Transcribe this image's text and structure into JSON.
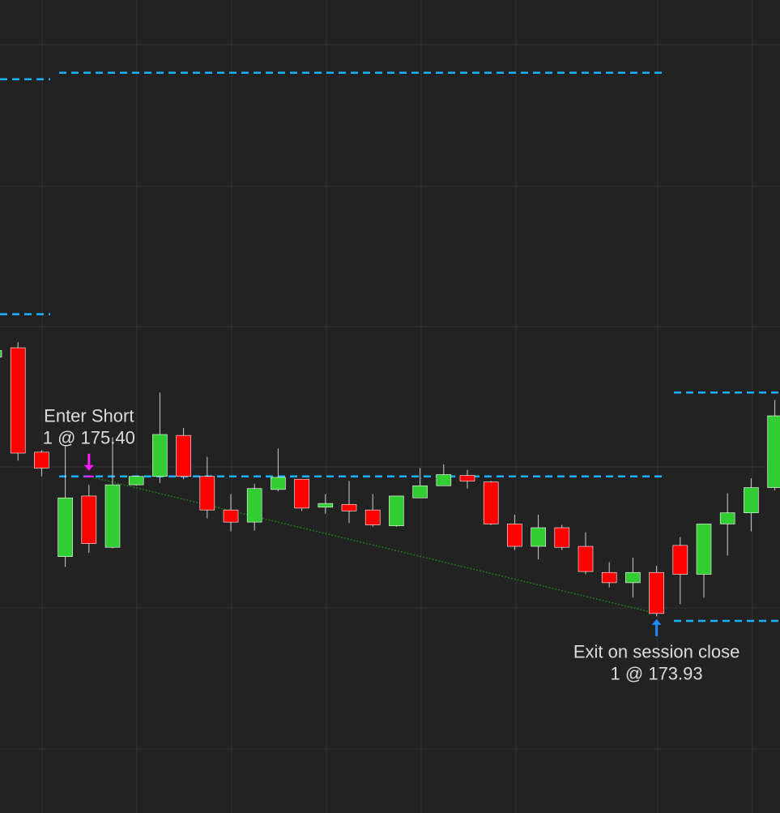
{
  "chart_data": {
    "type": "candlestick",
    "ylim": [
      171.79,
      180.51
    ],
    "up_color": "#32cd32",
    "down_color": "#ff0000",
    "level_color": "#1ab2ff",
    "trade_line_color": "#1f7a1f",
    "open": [
      176.68,
      176.78,
      175.66,
      174.54,
      175.19,
      174.64,
      175.31,
      175.4,
      175.84,
      175.4,
      175.04,
      174.91,
      175.26,
      175.37,
      175.07,
      175.1,
      175.04,
      174.87,
      175.17,
      175.3,
      175.41,
      175.34,
      174.89,
      174.65,
      174.85,
      174.65,
      174.37,
      174.26,
      174.37,
      174.66,
      174.35,
      174.89,
      175.01,
      175.28
    ],
    "high": [
      176.75,
      176.84,
      175.68,
      175.73,
      175.31,
      175.82,
      175.41,
      176.3,
      175.92,
      175.61,
      175.21,
      175.32,
      175.7,
      175.37,
      175.21,
      175.35,
      175.21,
      175.19,
      175.49,
      175.53,
      175.47,
      175.35,
      174.99,
      174.99,
      174.88,
      174.8,
      174.48,
      174.53,
      174.44,
      174.75,
      174.89,
      175.22,
      175.38,
      176.22
    ],
    "low": [
      176.68,
      175.57,
      175.4,
      174.43,
      174.58,
      174.63,
      175.3,
      175.33,
      175.37,
      174.95,
      174.81,
      174.82,
      175.24,
      175.03,
      175.0,
      174.9,
      174.86,
      174.86,
      175.17,
      175.3,
      175.27,
      174.88,
      174.61,
      174.51,
      174.61,
      174.35,
      174.21,
      174.1,
      173.9,
      174.03,
      174.1,
      174.55,
      174.81,
      175.25
    ],
    "close": [
      176.75,
      175.65,
      175.49,
      175.17,
      174.68,
      175.31,
      175.4,
      175.85,
      175.4,
      175.04,
      174.91,
      175.27,
      175.39,
      175.06,
      175.11,
      175.03,
      174.88,
      175.19,
      175.3,
      175.42,
      175.35,
      174.89,
      174.65,
      174.85,
      174.64,
      174.38,
      174.26,
      174.37,
      173.93,
      174.35,
      174.89,
      175.01,
      175.28,
      176.05
    ],
    "sessions": [
      {
        "upper": 179.66,
        "lower": 177.14
      },
      {
        "upper": 179.73,
        "lower": 175.4
      },
      {
        "upper": 176.3,
        "lower": 173.85
      }
    ],
    "trades": [
      {
        "label": "Enter Short",
        "detail": "1 @ 175.40",
        "price": 175.4,
        "color": "#ff1aff"
      },
      {
        "label": "Exit on session close",
        "detail": "1 @ 173.93",
        "price": 173.93,
        "color": "#1a8cff"
      }
    ]
  }
}
